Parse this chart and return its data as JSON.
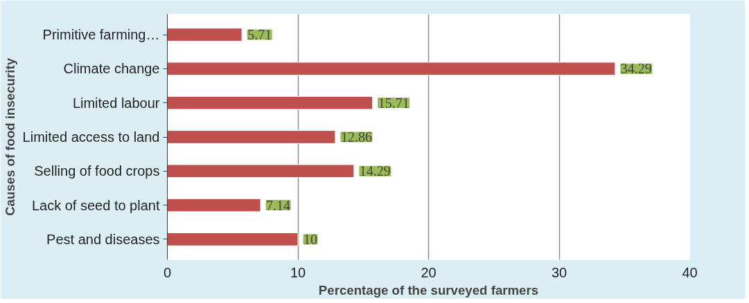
{
  "chart_data": {
    "type": "bar",
    "orientation": "horizontal",
    "categories": [
      "Primitive farming…",
      "Climate change",
      "Limited labour",
      "Limited access to land",
      "Selling of food crops",
      "Lack of seed to plant",
      "Pest and diseases"
    ],
    "values": [
      5.71,
      34.29,
      15.71,
      12.86,
      14.29,
      7.14,
      10
    ],
    "color": "#c0504d",
    "xlim": [
      0,
      40
    ],
    "xticks": [
      0,
      10,
      20,
      30,
      40
    ],
    "xlabel": "Percentage of the surveyed farmers",
    "ylabel": "Causes of food insecurity",
    "grid": "x",
    "data_labels": true
  }
}
